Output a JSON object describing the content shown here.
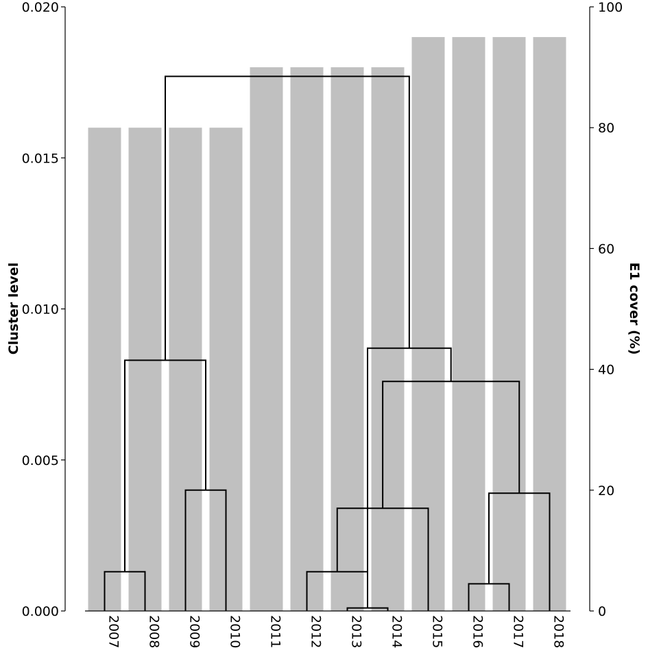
{
  "chart_data": {
    "type": "bar+dendrogram",
    "categories": [
      "2007",
      "2008",
      "2009",
      "2010",
      "2011",
      "2012",
      "2013",
      "2014",
      "2015",
      "2016",
      "2017",
      "2018"
    ],
    "bar_series": {
      "name": "E1 cover (%)",
      "values": [
        80,
        80,
        80,
        80,
        90,
        90,
        90,
        90,
        95,
        95,
        95,
        95
      ],
      "color": "#c0c0c0"
    },
    "dendrogram": {
      "merges": [
        {
          "left": 6,
          "right": 7,
          "height": 0.0001
        },
        {
          "left": 0,
          "right": 1,
          "height": 0.0013
        },
        {
          "left": 9,
          "right": 10,
          "height": 0.0009
        },
        {
          "left": 5,
          "right": 12,
          "height": 0.0013
        },
        {
          "left": 2,
          "right": 3,
          "height": 0.004
        },
        {
          "left": 15,
          "right": 8,
          "height": 0.0034
        },
        {
          "left": 14,
          "right": 11,
          "height": 0.0039
        },
        {
          "left": 13,
          "right": 16,
          "height": 0.0083
        },
        {
          "left": 17,
          "right": 18,
          "height": 0.0076
        },
        {
          "left": 20,
          "right": 12,
          "height": 0.0087
        },
        {
          "left": 19,
          "right": 21,
          "height": 0.0177
        }
      ]
    },
    "left_axis": {
      "label": "Cluster level",
      "ylim": [
        0,
        0.02
      ],
      "ticks": [
        0,
        0.005,
        0.01,
        0.015,
        0.02
      ],
      "tick_labels": [
        "0.000",
        "0.005",
        "0.010",
        "0.015",
        "0.020"
      ]
    },
    "right_axis": {
      "label": "E1 cover (%)",
      "ylim": [
        0,
        100
      ],
      "ticks": [
        0,
        20,
        40,
        60,
        80,
        100
      ],
      "tick_labels": [
        "0",
        "20",
        "40",
        "60",
        "80",
        "100"
      ]
    },
    "grid": false
  }
}
